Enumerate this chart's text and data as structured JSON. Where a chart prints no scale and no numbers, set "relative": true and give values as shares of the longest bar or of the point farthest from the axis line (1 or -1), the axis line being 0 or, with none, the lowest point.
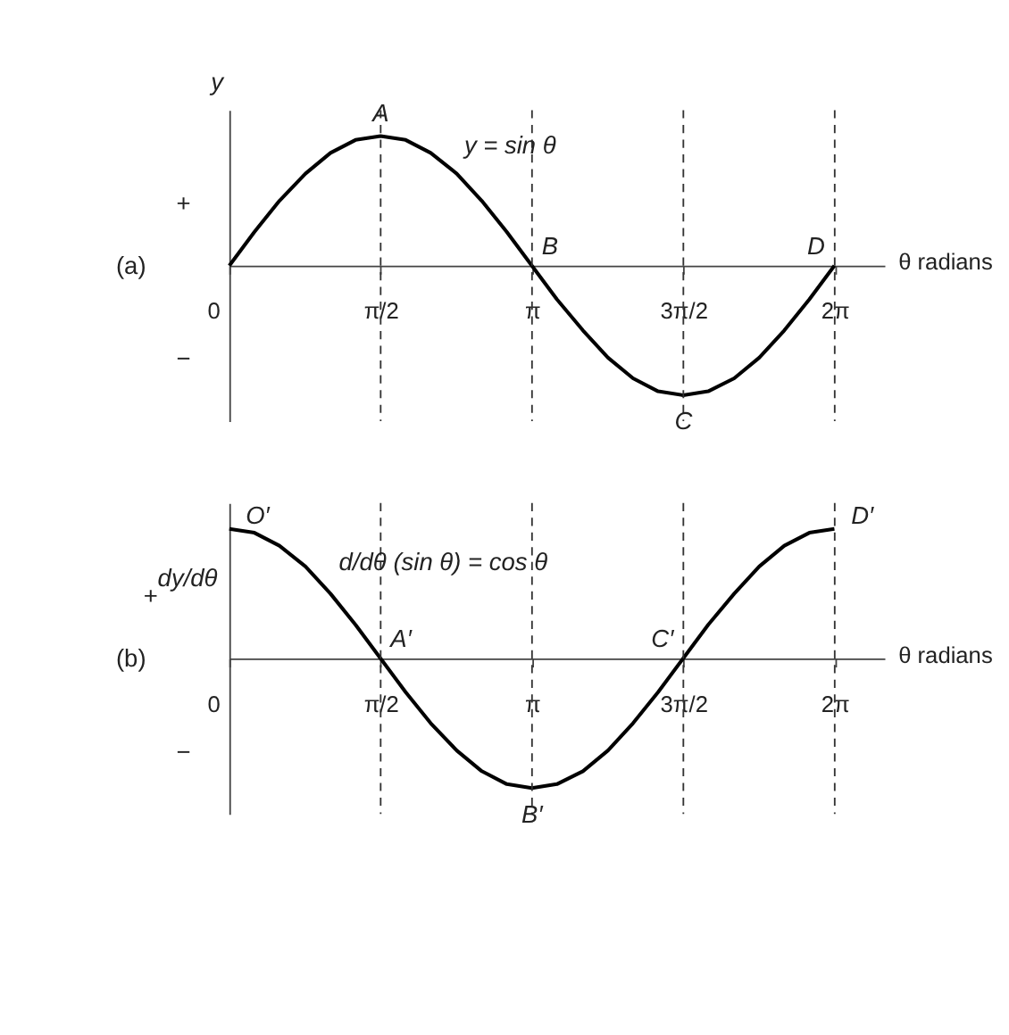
{
  "chart_data": [
    {
      "type": "line",
      "relative": true,
      "ylabel": "y",
      "xlabel": "θ radians",
      "xlim": [
        0,
        6.8
      ],
      "xticks": [
        0,
        {
          "value": 1.5708,
          "label": "π/2"
        },
        {
          "value": 3.1416,
          "label": "π"
        },
        {
          "value": 4.7124,
          "label": "3π/2"
        },
        {
          "value": 6.2832,
          "label": "2π"
        }
      ],
      "x": [
        0,
        0.26,
        0.52,
        0.79,
        1.05,
        1.31,
        1.57,
        1.83,
        2.09,
        2.36,
        2.62,
        2.88,
        3.14,
        3.4,
        3.67,
        3.93,
        4.19,
        4.45,
        4.71,
        4.97,
        5.24,
        5.5,
        5.76,
        6.02,
        6.28
      ],
      "series": [
        {
          "color": "#000000",
          "values": [
            0,
            0.26,
            0.5,
            0.71,
            0.87,
            0.97,
            1,
            0.97,
            0.87,
            0.71,
            0.5,
            0.26,
            0,
            -0.26,
            -0.5,
            -0.71,
            -0.87,
            -0.97,
            -1,
            -0.97,
            -0.87,
            -0.71,
            -0.5,
            -0.26,
            0
          ]
        }
      ],
      "ref_lines": [
        {
          "axis": "x",
          "value": 1.5708,
          "label": null,
          "line_style": "dashed"
        },
        {
          "axis": "x",
          "value": 3.1416,
          "label": null,
          "line_style": "dashed"
        },
        {
          "axis": "x",
          "value": 4.7124,
          "label": null,
          "line_style": "dashed"
        },
        {
          "axis": "x",
          "value": 6.2832,
          "label": null,
          "line_style": "dashed"
        }
      ],
      "annotations": [
        "+",
        "−",
        "(a)",
        {
          "text": "A",
          "x": 1.5708,
          "y": 1
        },
        {
          "text": "B",
          "x": 3.1416,
          "y": 0
        },
        {
          "text": "C",
          "x": 4.7124,
          "y": -1
        },
        {
          "text": "D",
          "x": 6.2832,
          "y": 0
        },
        {
          "text": "y = sin θ",
          "x": 2.2,
          "y": 0.8
        }
      ],
      "grid": false,
      "legend": false,
      "marker": "none",
      "line_style": "solid"
    },
    {
      "type": "line",
      "relative": true,
      "ylabel": "dy/dθ",
      "xlabel": "θ radians",
      "xlim": [
        0,
        6.8
      ],
      "xticks": [
        0,
        {
          "value": 1.5708,
          "label": "π/2"
        },
        {
          "value": 3.1416,
          "label": "π"
        },
        {
          "value": 4.7124,
          "label": "3π/2"
        },
        {
          "value": 6.2832,
          "label": "2π"
        }
      ],
      "x": [
        0,
        0.26,
        0.52,
        0.79,
        1.05,
        1.31,
        1.57,
        1.83,
        2.09,
        2.36,
        2.62,
        2.88,
        3.14,
        3.4,
        3.67,
        3.93,
        4.19,
        4.45,
        4.71,
        4.97,
        5.24,
        5.5,
        5.76,
        6.02,
        6.28
      ],
      "series": [
        {
          "color": "#000000",
          "values": [
            1,
            0.97,
            0.87,
            0.71,
            0.5,
            0.26,
            0,
            -0.26,
            -0.5,
            -0.71,
            -0.87,
            -0.97,
            -1,
            -0.97,
            -0.87,
            -0.71,
            -0.5,
            -0.26,
            0,
            0.26,
            0.5,
            0.71,
            0.87,
            0.97,
            1
          ]
        }
      ],
      "ref_lines": [
        {
          "axis": "x",
          "value": 1.5708,
          "label": null,
          "line_style": "dashed"
        },
        {
          "axis": "x",
          "value": 3.1416,
          "label": null,
          "line_style": "dashed"
        },
        {
          "axis": "x",
          "value": 4.7124,
          "label": null,
          "line_style": "dashed"
        },
        {
          "axis": "x",
          "value": 6.2832,
          "label": null,
          "line_style": "dashed"
        }
      ],
      "annotations": [
        "+",
        "−",
        "(b)",
        {
          "text": "O′",
          "x": 0,
          "y": 1
        },
        {
          "text": "A′",
          "x": 1.5708,
          "y": 0
        },
        {
          "text": "B′",
          "x": 3.1416,
          "y": -1
        },
        {
          "text": "C′",
          "x": 4.7124,
          "y": 0
        },
        {
          "text": "D′",
          "x": 6.2832,
          "y": 1
        },
        {
          "text": "d/dθ (sin θ) = cos θ",
          "x": 0.9,
          "y": 0.62
        }
      ],
      "grid": false,
      "legend": false,
      "marker": "none",
      "line_style": "solid"
    }
  ]
}
